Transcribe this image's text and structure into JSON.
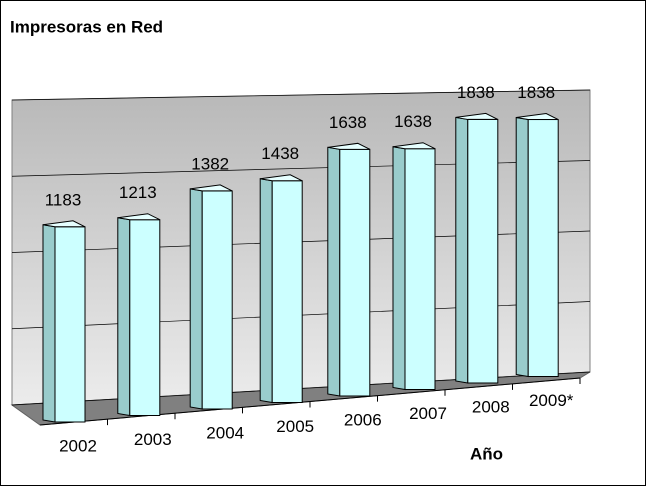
{
  "chart_data": {
    "type": "bar3d",
    "title": "Impresoras en Red",
    "x_label": "Año",
    "categories": [
      "2002",
      "2003",
      "2004",
      "2005",
      "2006",
      "2007",
      "2008",
      "2009*"
    ],
    "values": [
      1183,
      1213,
      1382,
      1438,
      1638,
      1638,
      1838,
      1838
    ],
    "color": "#ccffff",
    "ylim": [
      0,
      2000
    ],
    "yticks": [
      0,
      500,
      1000,
      1500,
      2000
    ],
    "grid": true
  }
}
